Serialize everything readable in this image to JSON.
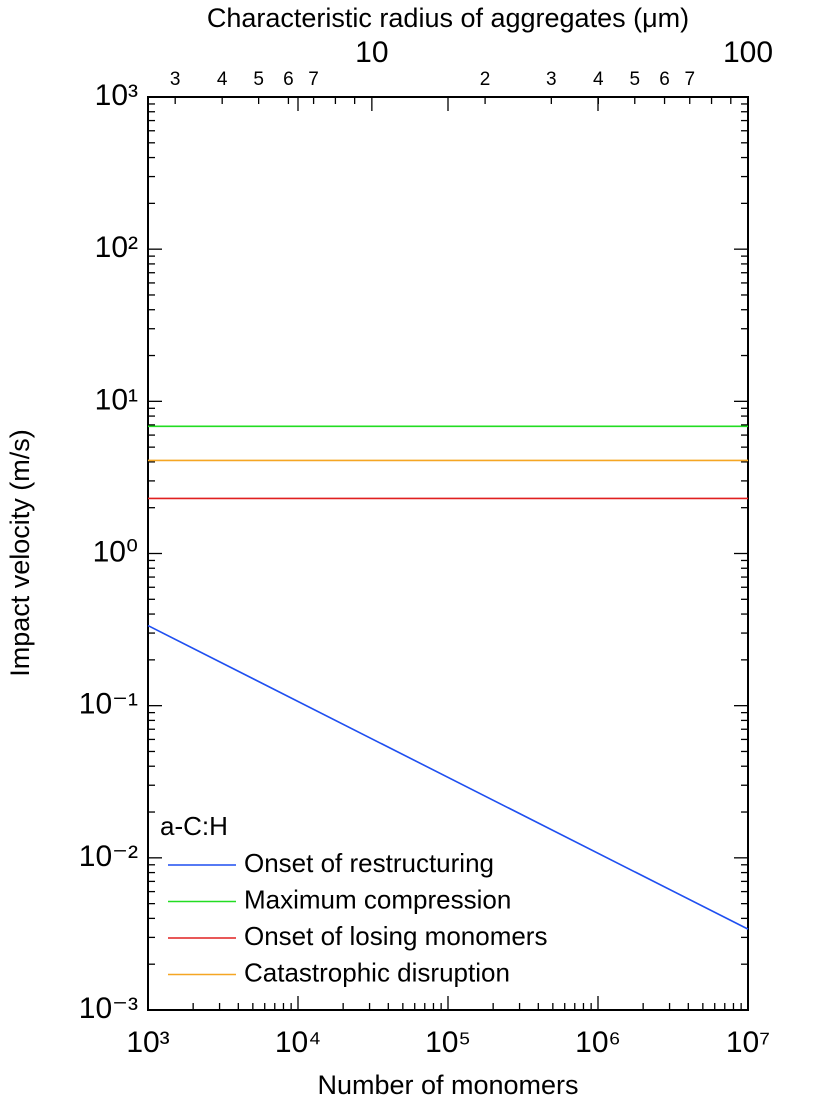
{
  "chart_data": {
    "type": "line",
    "xlabel": "Number of monomers",
    "ylabel": "Impact velocity (m/s)",
    "x2label": "Characteristic radius of aggregates (μm)",
    "xscale": "log",
    "yscale": "log",
    "x2scale": "log",
    "xlim": [
      1000,
      10000000
    ],
    "ylim": [
      0.001,
      1000
    ],
    "x2lim": [
      2.54,
      100
    ],
    "xticks": [
      {
        "value": 1000,
        "label": "10³"
      },
      {
        "value": 10000,
        "label": "10⁴"
      },
      {
        "value": 100000,
        "label": "10⁵"
      },
      {
        "value": 1000000,
        "label": "10⁶"
      },
      {
        "value": 10000000,
        "label": "10⁷"
      }
    ],
    "xminorticks": [
      2000,
      3000,
      4000,
      5000,
      6000,
      7000,
      8000,
      9000,
      20000,
      30000,
      40000,
      50000,
      60000,
      70000,
      80000,
      90000,
      200000,
      300000,
      400000,
      500000,
      600000,
      700000,
      800000,
      900000,
      2000000,
      3000000,
      4000000,
      5000000,
      6000000,
      7000000,
      8000000,
      9000000
    ],
    "yticks": [
      {
        "value": 0.001,
        "label": "10⁻³"
      },
      {
        "value": 0.01,
        "label": "10⁻²"
      },
      {
        "value": 0.1,
        "label": "10⁻¹"
      },
      {
        "value": 1,
        "label": "10⁰"
      },
      {
        "value": 10,
        "label": "10¹"
      },
      {
        "value": 100,
        "label": "10²"
      },
      {
        "value": 1000,
        "label": "10³"
      }
    ],
    "yminorticks": [
      0.002,
      0.003,
      0.004,
      0.005,
      0.006,
      0.007,
      0.008,
      0.009,
      0.02,
      0.03,
      0.04,
      0.05,
      0.06,
      0.07,
      0.08,
      0.09,
      0.2,
      0.3,
      0.4,
      0.5,
      0.6,
      0.7,
      0.8,
      0.9,
      2,
      3,
      4,
      5,
      6,
      7,
      8,
      9,
      20,
      30,
      40,
      50,
      60,
      70,
      80,
      90,
      200,
      300,
      400,
      500,
      600,
      700,
      800,
      900
    ],
    "x2ticks": [
      10,
      100
    ],
    "x2minorticks": [
      3,
      4,
      5,
      6,
      7,
      8,
      9,
      {
        "value": 20,
        "label": "2"
      },
      {
        "value": 30,
        "label": "3"
      },
      {
        "value": 40,
        "label": "4"
      },
      {
        "value": 50,
        "label": "5"
      },
      {
        "value": 60,
        "label": "6"
      },
      {
        "value": 70,
        "label": "7"
      },
      80,
      90
    ],
    "legend_title": "a-C:H",
    "legend": "lower left",
    "x": [
      1000,
      10000000
    ],
    "series": [
      {
        "name": "Onset of restructuring",
        "color": "#1f4ff0",
        "values": [
          0.336,
          0.0034
        ]
      },
      {
        "name": "Maximum compression",
        "color": "#22dd22",
        "values": [
          6.85,
          6.85
        ]
      },
      {
        "name": "Onset of losing monomers",
        "color": "#e02020",
        "values": [
          2.3,
          2.3
        ]
      },
      {
        "name": "Catastrophic disruption",
        "color": "#f5a623",
        "values": [
          4.09,
          4.09
        ]
      }
    ]
  }
}
